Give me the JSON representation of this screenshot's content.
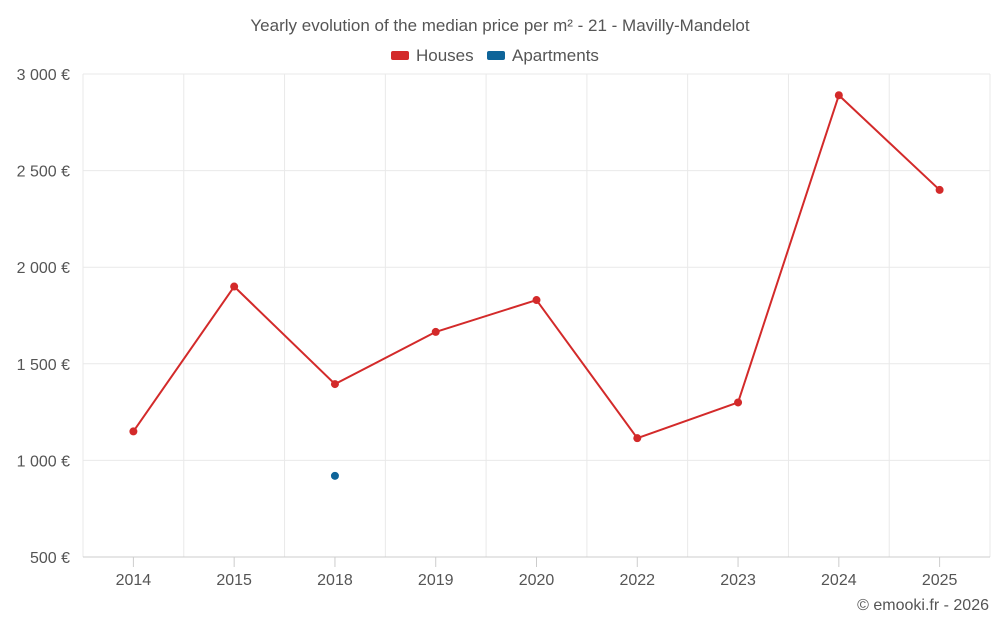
{
  "colors": {
    "houses": "#d32a2a",
    "apartments": "#0e6499",
    "grid": "#e9e9e9",
    "text": "#555555"
  },
  "footer": {
    "credit": "© emooki.fr - 2026"
  },
  "chart_data": {
    "type": "line",
    "title": "Yearly evolution of the median price per m² - 21 - Mavilly-Mandelot",
    "categories": [
      "2014",
      "2015",
      "2018",
      "2019",
      "2020",
      "2022",
      "2023",
      "2024",
      "2025"
    ],
    "series": [
      {
        "name": "Houses",
        "color": "#d32a2a",
        "values": [
          1150,
          1900,
          1395,
          1665,
          1830,
          1115,
          1300,
          2890,
          2400
        ]
      },
      {
        "name": "Apartments",
        "color": "#0e6499",
        "values": [
          null,
          null,
          920,
          null,
          null,
          null,
          null,
          null,
          null
        ]
      }
    ],
    "yticks": [
      500,
      1000,
      1500,
      2000,
      2500,
      3000
    ],
    "ytick_labels": [
      "500 €",
      "1 000 €",
      "1 500 €",
      "2 000 €",
      "2 500 €",
      "3 000 €"
    ],
    "ylim": [
      500,
      3000
    ],
    "xlabel": "",
    "ylabel": "",
    "legend": "top-center",
    "grid": true
  }
}
